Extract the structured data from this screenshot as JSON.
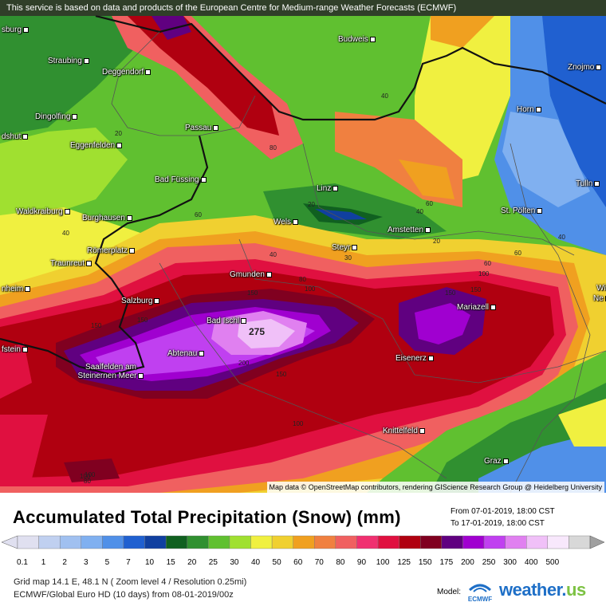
{
  "banner": "This service is based on data and products of the European Centre for Medium-range Weather Forecasts (ECMWF)",
  "attribution": "Map data © OpenStreetMap contributors, rendering GIScience Research Group @ Heidelberg University",
  "title": "Accumulated Total Precipitation (Snow) (mm)",
  "range_from": "From 07-01-2019, 18:00 CST",
  "range_to": "To 17-01-2019, 18:00 CST",
  "legend": {
    "values": [
      "0.1",
      "1",
      "2",
      "3",
      "5",
      "7",
      "10",
      "15",
      "20",
      "25",
      "30",
      "40",
      "50",
      "60",
      "70",
      "80",
      "90",
      "100",
      "125",
      "150",
      "175",
      "200",
      "250",
      "300",
      "400",
      "500"
    ],
    "colors": [
      "#e0e0f0",
      "#c0d0f0",
      "#a0c0f0",
      "#80b0f0",
      "#5090e8",
      "#2060d0",
      "#1040a0",
      "#106020",
      "#309030",
      "#60c030",
      "#a0e030",
      "#f0f040",
      "#f0d030",
      "#f0a020",
      "#f08040",
      "#f06060",
      "#f03070",
      "#e01040",
      "#b00010",
      "#800020",
      "#600080",
      "#a000d0",
      "#c040f0",
      "#e080f0",
      "#f0c0f8",
      "#f8e8fc",
      "#d8d8d8"
    ]
  },
  "cities": [
    {
      "name": "Budweis"
    },
    {
      "name": "Znojmo"
    },
    {
      "name": "Straubing"
    },
    {
      "name": "Deggendorf"
    },
    {
      "name": "Dingolfing"
    },
    {
      "name": "Passau"
    },
    {
      "name": "Horn"
    },
    {
      "name": "Eggenfelden"
    },
    {
      "name": "Bad Füssing"
    },
    {
      "name": "Linz"
    },
    {
      "name": "Tulln"
    },
    {
      "name": "Waldkraiburg"
    },
    {
      "name": "Burghausen"
    },
    {
      "name": "Wels"
    },
    {
      "name": "Amstetten"
    },
    {
      "name": "St. Pölten"
    },
    {
      "name": "Römerplatz"
    },
    {
      "name": "Steyr"
    },
    {
      "name": "Traunreut"
    },
    {
      "name": "Gmunden"
    },
    {
      "name": "Salzburg"
    },
    {
      "name": "Mariazell"
    },
    {
      "name": "Bad Ischl"
    },
    {
      "name": "Abtenau"
    },
    {
      "name": "Saalfelden am Steinernen Meer"
    },
    {
      "name": "Eisenerz"
    },
    {
      "name": "Knittelfeld"
    },
    {
      "name": "Graz"
    },
    {
      "name": "sburg"
    },
    {
      "name": "dshut"
    },
    {
      "name": "nheim"
    },
    {
      "name": "fstein"
    },
    {
      "name": "Wi"
    },
    {
      "name": "Ne"
    }
  ],
  "contour_labels": [
    "40",
    "20",
    "80",
    "60",
    "40",
    "20",
    "40",
    "60",
    "20",
    "40",
    "60",
    "80",
    "100",
    "150",
    "150",
    "150",
    "200",
    "275",
    "30",
    "150",
    "150",
    "100",
    "100",
    "100",
    "40",
    "60",
    "100",
    "150",
    "80"
  ],
  "footer": {
    "line1": "Grid map 14.1 E, 48.1 N ( Zoom level 4 / Resolution 0.25mi)",
    "line2": "ECMWF/Global Euro HD (10 days) from 08-01-2019/00z",
    "model_label": "Model:",
    "ecmwf_label": "ECMWF",
    "brand": "weather.",
    "brand_tld": "us"
  }
}
